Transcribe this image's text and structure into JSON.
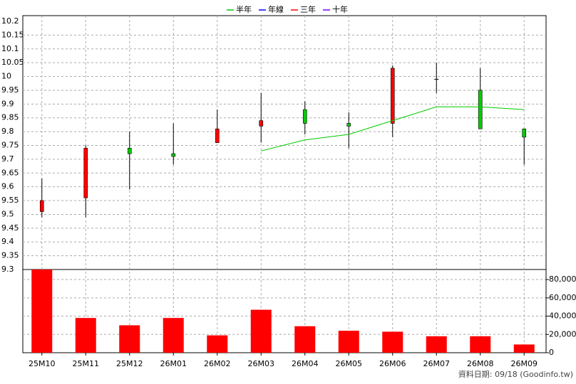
{
  "chart_data": {
    "type": "candlestick",
    "categories": [
      "25M10",
      "25M11",
      "25M12",
      "26M01",
      "26M02",
      "26M03",
      "26M04",
      "26M05",
      "26M06",
      "26M07",
      "26M08",
      "26M09"
    ],
    "open": [
      9.51,
      9.56,
      9.74,
      9.72,
      9.76,
      9.82,
      9.88,
      9.83,
      9.83,
      9.99,
      9.95,
      9.81
    ],
    "high": [
      9.63,
      9.75,
      9.8,
      9.83,
      9.88,
      9.94,
      9.91,
      9.87,
      10.04,
      10.05,
      10.03,
      9.81
    ],
    "low": [
      9.49,
      9.49,
      9.59,
      9.68,
      9.76,
      9.76,
      9.79,
      9.74,
      9.78,
      9.94,
      9.81,
      9.68
    ],
    "close": [
      9.55,
      9.74,
      9.72,
      9.71,
      9.81,
      9.84,
      9.83,
      9.82,
      10.03,
      9.99,
      9.81,
      9.78
    ],
    "up_color": "#ff0000",
    "down_color": "#00cc00",
    "ylim": [
      9.3,
      10.2
    ],
    "yticks": [
      9.3,
      9.35,
      9.4,
      9.45,
      9.5,
      9.55,
      9.6,
      9.65,
      9.7,
      9.75,
      9.8,
      9.85,
      9.9,
      9.95,
      10,
      10.05,
      10.1,
      10.15,
      10.2
    ],
    "series": [
      {
        "name": "半年",
        "color": "#00cc00",
        "values": [
          null,
          null,
          null,
          null,
          null,
          9.73,
          9.77,
          9.79,
          9.84,
          9.89,
          9.89,
          9.88
        ]
      },
      {
        "name": "年線",
        "color": "#0000ff",
        "values": [
          null,
          null,
          null,
          null,
          null,
          null,
          null,
          null,
          null,
          null,
          null,
          null
        ]
      },
      {
        "name": "三年",
        "color": "#ff0000",
        "values": [
          null,
          null,
          null,
          null,
          null,
          null,
          null,
          null,
          null,
          null,
          null,
          null
        ]
      },
      {
        "name": "十年",
        "color": "#8000ff",
        "values": [
          null,
          null,
          null,
          null,
          null,
          null,
          null,
          null,
          null,
          null,
          null,
          null
        ]
      }
    ],
    "volume": {
      "color": "#ff0000",
      "values": [
        91000,
        38000,
        30000,
        38000,
        19000,
        47000,
        29000,
        24000,
        23000,
        18000,
        18000,
        9000
      ]
    },
    "y2lim": [
      0,
      91000
    ],
    "y2ticks": [
      0,
      {
        "value": 20000,
        "label": "20,000"
      },
      {
        "value": 40000,
        "label": "40,000"
      },
      {
        "value": 60000,
        "label": "60,000"
      },
      {
        "value": 80000,
        "label": "80,000"
      }
    ],
    "grid": true,
    "note": "資料日期: 09/18  (Goodinfo.tw)"
  }
}
